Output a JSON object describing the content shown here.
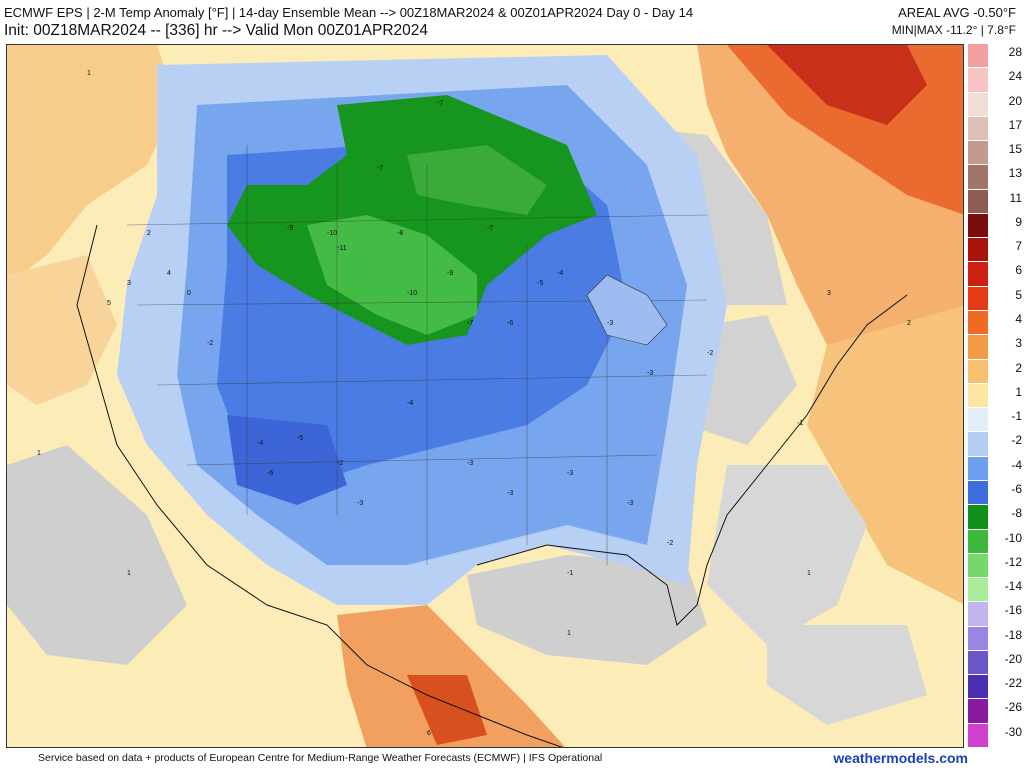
{
  "header": {
    "title_line1": "ECMWF EPS | 2-M Temp Anomaly [°F] | 14-day Ensemble Mean --> 00Z18MAR2024 & 00Z01APR2024  Day 0 - Day 14",
    "title_line2": "Init: 00Z18MAR2024 -- [336] hr --> Valid Mon 00Z01APR2024",
    "areal_avg": "AREAL AVG -0.50°F",
    "min_max": "MIN|MAX -11.2° | 7.8°F"
  },
  "footer": {
    "credit": "Service based on data + products of European Centre for Medium-Range Weather Forecasts (ECMWF) | IFS Operational",
    "site": "weathermodels.com"
  },
  "legend": {
    "labels": [
      "28",
      "24",
      "20",
      "17",
      "15",
      "13",
      "11",
      "9",
      "7",
      "6",
      "5",
      "4",
      "3",
      "2",
      "1",
      "-1",
      "-2",
      "-4",
      "-6",
      "-8",
      "-10",
      "-12",
      "-14",
      "-16",
      "-18",
      "-20",
      "-22",
      "-26",
      "-30"
    ],
    "colors": [
      "#f4a0a0",
      "#f6c4c4",
      "#f2dcd6",
      "#dcc0b8",
      "#c29a8e",
      "#a27468",
      "#8e5c52",
      "#7a0c0c",
      "#a8140c",
      "#cc2010",
      "#e43c14",
      "#f06a24",
      "#f29a46",
      "#f6c070",
      "#fbe7a3",
      "#e4eef8",
      "#b6cdf3",
      "#6e9ef0",
      "#3c6cde",
      "#10901a",
      "#3cb83c",
      "#76d86c",
      "#a8ec98",
      "#c2b4ec",
      "#9a86e0",
      "#6a58c8",
      "#4c2eb0",
      "#8a1aa0",
      "#d040d0"
    ]
  },
  "map_labels": {
    "contour_values": [
      "1",
      "-1",
      "-2",
      "-3",
      "-4",
      "-5",
      "-6",
      "-7",
      "-8",
      "-9",
      "-10",
      "-11",
      "2",
      "3",
      "4",
      "5",
      "6",
      "0"
    ]
  }
}
